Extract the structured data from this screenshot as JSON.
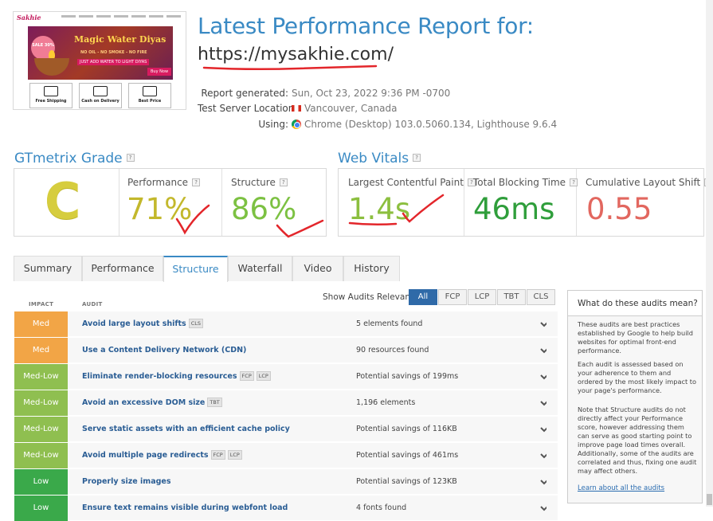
{
  "thumbnail": {
    "logo": "Sakhie",
    "banner_title": "Magic Water Diyas",
    "sale": "SALE 30%",
    "banner_sub1": "NO OIL - NO SMOKE - NO FIRE",
    "banner_sub2": "JUST ADD WATER TO LIGHT DIYAS",
    "buy": "Buy Now",
    "features": [
      "Free Shipping",
      "Cash on Delivery",
      "Best Price"
    ]
  },
  "header": {
    "title": "Latest Performance Report for:",
    "url": "https://mysakhie.com/",
    "report_generated_label": "Report generated:",
    "report_generated_value": "Sun, Oct 23, 2022 9:36 PM -0700",
    "server_label": "Test Server Location:",
    "server_value": "Vancouver, Canada",
    "using_label": "Using:",
    "using_value": "Chrome (Desktop) 103.0.5060.134, Lighthouse 9.6.4"
  },
  "grade": {
    "heading": "GTmetrix Grade",
    "letter": "C",
    "performance_label": "Performance",
    "performance_value": "71%",
    "structure_label": "Structure",
    "structure_value": "86%"
  },
  "vitals": {
    "heading": "Web Vitals",
    "lcp_label": "Largest Contentful Paint",
    "lcp_value": "1.4s",
    "tbt_label": "Total Blocking Time",
    "tbt_value": "46ms",
    "cls_label": "Cumulative Layout Shift",
    "cls_value": "0.55"
  },
  "tabs": [
    "Summary",
    "Performance",
    "Structure",
    "Waterfall",
    "Video",
    "History"
  ],
  "active_tab": "Structure",
  "audits": {
    "col_impact": "IMPACT",
    "col_audit": "AUDIT",
    "filter_label": "Show Audits Relevant to",
    "filters": [
      "All",
      "FCP",
      "LCP",
      "TBT",
      "CLS"
    ],
    "active_filter": "All",
    "rows": [
      {
        "impact": "Med",
        "color": "#f2a546",
        "name": "Avoid large layout shifts",
        "tags": [
          "CLS"
        ],
        "result": "5 elements found"
      },
      {
        "impact": "Med",
        "color": "#f2a546",
        "name": "Use a Content Delivery Network (CDN)",
        "tags": [],
        "result": "90 resources found"
      },
      {
        "impact": "Med-Low",
        "color": "#8fbf50",
        "name": "Eliminate render-blocking resources",
        "tags": [
          "FCP",
          "LCP"
        ],
        "result": "Potential savings of 199ms"
      },
      {
        "impact": "Med-Low",
        "color": "#8fbf50",
        "name": "Avoid an excessive DOM size",
        "tags": [
          "TBT"
        ],
        "result": "1,196 elements"
      },
      {
        "impact": "Med-Low",
        "color": "#8fbf50",
        "name": "Serve static assets with an efficient cache policy",
        "tags": [],
        "result": "Potential savings of 116KB"
      },
      {
        "impact": "Med-Low",
        "color": "#8fbf50",
        "name": "Avoid multiple page redirects",
        "tags": [
          "FCP",
          "LCP"
        ],
        "result": "Potential savings of 461ms"
      },
      {
        "impact": "Low",
        "color": "#3aa94a",
        "name": "Properly size images",
        "tags": [],
        "result": "Potential savings of 123KB"
      },
      {
        "impact": "Low",
        "color": "#3aa94a",
        "name": "Ensure text remains visible during webfont load",
        "tags": [],
        "result": "4 fonts found"
      }
    ]
  },
  "sidebar": {
    "heading": "What do these audits mean?",
    "p1": "These audits are best practices established by Google to help build websites for optimal front-end performance.",
    "p2": "Each audit is assessed based on your adherence to them and ordered by the most likely impact to your page's performance.",
    "p3": "Note that Structure audits do not directly affect your Performance score, however addressing them can serve as good starting point to improve page load times overall. Additionally, some of the audits are correlated and thus, fixing one audit may affect others.",
    "link": "Learn about all the audits"
  },
  "colors": {
    "accent": "#3a8ac4",
    "grade_c": "#d6cd3e",
    "performance": "#c3b82c",
    "structure": "#7cc142",
    "lcp": "#8cbf3f",
    "tbt": "#2f9e3b",
    "cls": "#e2675f",
    "annotation_red": "#e3262b"
  }
}
